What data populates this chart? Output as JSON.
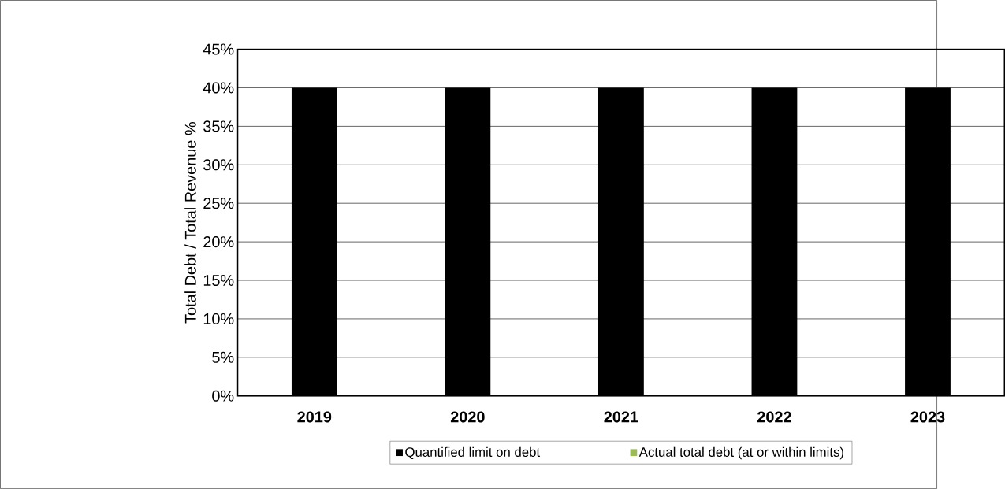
{
  "chart_data": {
    "type": "bar",
    "ylabel": "Total Debt / Total Revenue %",
    "categories": [
      "2019",
      "2020",
      "2021",
      "2022",
      "2023"
    ],
    "series": [
      {
        "name": "Quantified limit on debt",
        "color": "#000000",
        "values": [
          40,
          40,
          40,
          40,
          40
        ]
      },
      {
        "name": "Actual total debt (at or within limits)",
        "color": "#9bbb59",
        "values": [
          null,
          null,
          null,
          null,
          null
        ]
      }
    ],
    "ylim": [
      0,
      45
    ],
    "yticks": [
      {
        "value": 0,
        "label": "0%"
      },
      {
        "value": 5,
        "label": "5%"
      },
      {
        "value": 10,
        "label": "10%"
      },
      {
        "value": 15,
        "label": "15%"
      },
      {
        "value": 20,
        "label": "20%"
      },
      {
        "value": 25,
        "label": "25%"
      },
      {
        "value": 30,
        "label": "30%"
      },
      {
        "value": 35,
        "label": "35%"
      },
      {
        "value": 40,
        "label": "40%"
      },
      {
        "value": 45,
        "label": "45%"
      }
    ],
    "grid": "y",
    "legend": "bottom"
  }
}
